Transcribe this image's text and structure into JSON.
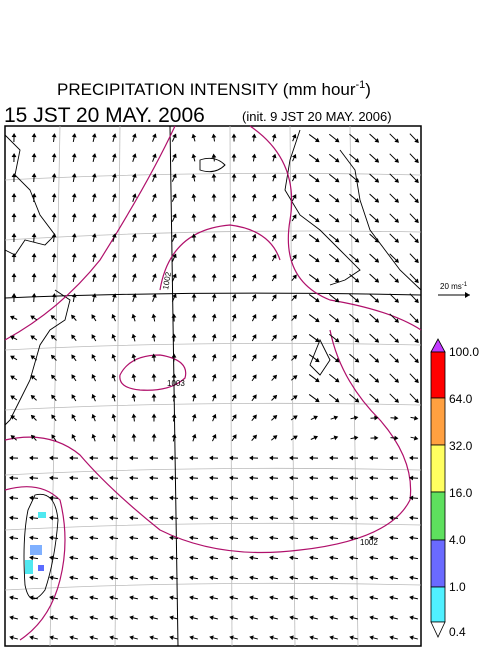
{
  "header": {
    "title": "PRECIPITATION INTENSITY (mm hour",
    "title_sup": "-1",
    "title_end": ")",
    "valid_time": "15 JST 20 MAY. 2006",
    "init_time": "(init. 9 JST 20 MAY. 2006)"
  },
  "vector_scale": {
    "label": "20 ms",
    "label_sup": "-1"
  },
  "contour_labels": [
    "1002",
    "1003",
    "1002"
  ],
  "colorbar": {
    "labels": [
      "100.0",
      "64.0",
      "32.0",
      "16.0",
      "4.0",
      "1.0",
      "0.4"
    ]
  }
}
